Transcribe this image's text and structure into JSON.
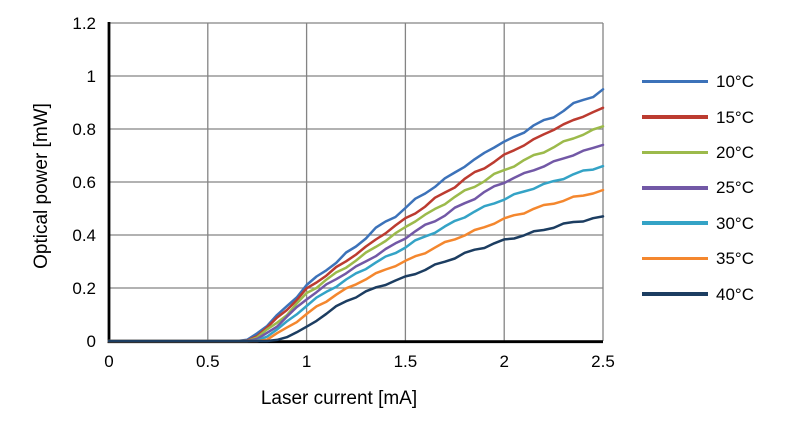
{
  "chart_data": {
    "type": "line",
    "title": "",
    "xlabel": "Laser current [mA]",
    "ylabel": "Optical power [mW]",
    "xlim": [
      0,
      2.5
    ],
    "ylim": [
      0,
      1.2
    ],
    "xticks": [
      0,
      0.5,
      1,
      1.5,
      2,
      2.5
    ],
    "xtick_labels": [
      "0",
      "0.5",
      "1",
      "1.5",
      "2",
      "2.5"
    ],
    "yticks": [
      0,
      0.2,
      0.4,
      0.6,
      0.8,
      1,
      1.2
    ],
    "ytick_labels": [
      "0",
      "0.2",
      "0.4",
      "0.6",
      "0.8",
      "1",
      "1.2"
    ],
    "grid": true,
    "grid_color": "#848484",
    "axis_color": "#000000",
    "legend_position": "right",
    "measurement_wiggle_mW": 0.004,
    "x_start": 0,
    "x_step": 0.05,
    "series": [
      {
        "name": "10°C",
        "color": "#3C72B9",
        "threshold_mA": 0.67,
        "values": [
          0,
          0,
          0,
          0,
          0,
          0,
          0,
          0,
          0,
          0,
          0,
          0,
          0,
          0,
          0.005,
          0.03,
          0.06,
          0.095,
          0.13,
          0.168,
          0.21,
          0.24,
          0.27,
          0.296,
          0.33,
          0.358,
          0.39,
          0.424,
          0.45,
          0.472,
          0.5,
          0.534,
          0.56,
          0.582,
          0.61,
          0.638,
          0.66,
          0.682,
          0.71,
          0.734,
          0.75,
          0.768,
          0.79,
          0.814,
          0.83,
          0.846,
          0.87,
          0.894,
          0.91,
          0.924,
          0.95
        ]
      },
      {
        "name": "15°C",
        "color": "#BC3B30",
        "threshold_mA": 0.69,
        "values": [
          0,
          0,
          0,
          0,
          0,
          0,
          0,
          0,
          0,
          0,
          0,
          0,
          0,
          0,
          0.002,
          0.022,
          0.05,
          0.085,
          0.12,
          0.155,
          0.195,
          0.222,
          0.25,
          0.276,
          0.3,
          0.33,
          0.355,
          0.38,
          0.41,
          0.437,
          0.46,
          0.483,
          0.51,
          0.537,
          0.56,
          0.583,
          0.61,
          0.635,
          0.655,
          0.676,
          0.7,
          0.722,
          0.74,
          0.758,
          0.78,
          0.8,
          0.815,
          0.832,
          0.85,
          0.863,
          0.88
        ]
      },
      {
        "name": "20°C",
        "color": "#9CBA4B",
        "threshold_mA": 0.71,
        "values": [
          0,
          0,
          0,
          0,
          0,
          0,
          0,
          0,
          0,
          0,
          0,
          0,
          0,
          0,
          0,
          0.015,
          0.04,
          0.07,
          0.1,
          0.138,
          0.18,
          0.204,
          0.23,
          0.256,
          0.28,
          0.304,
          0.33,
          0.357,
          0.38,
          0.403,
          0.43,
          0.455,
          0.475,
          0.496,
          0.52,
          0.544,
          0.565,
          0.584,
          0.605,
          0.627,
          0.645,
          0.662,
          0.68,
          0.7,
          0.715,
          0.73,
          0.75,
          0.767,
          0.78,
          0.794,
          0.81
        ]
      },
      {
        "name": "25°C",
        "color": "#7258A6",
        "threshold_mA": 0.73,
        "values": [
          0,
          0,
          0,
          0,
          0,
          0,
          0,
          0,
          0,
          0,
          0,
          0,
          0,
          0,
          0,
          0.008,
          0.03,
          0.058,
          0.09,
          0.125,
          0.16,
          0.185,
          0.21,
          0.235,
          0.258,
          0.278,
          0.3,
          0.324,
          0.345,
          0.366,
          0.39,
          0.414,
          0.435,
          0.454,
          0.475,
          0.499,
          0.52,
          0.539,
          0.56,
          0.582,
          0.6,
          0.615,
          0.63,
          0.647,
          0.66,
          0.674,
          0.69,
          0.704,
          0.715,
          0.727,
          0.74
        ]
      },
      {
        "name": "30°C",
        "color": "#34A3C6",
        "threshold_mA": 0.75,
        "values": [
          0,
          0,
          0,
          0,
          0,
          0,
          0,
          0,
          0,
          0,
          0,
          0,
          0,
          0,
          0,
          0.002,
          0.02,
          0.044,
          0.07,
          0.102,
          0.135,
          0.16,
          0.185,
          0.208,
          0.23,
          0.253,
          0.275,
          0.296,
          0.315,
          0.334,
          0.355,
          0.376,
          0.395,
          0.412,
          0.43,
          0.451,
          0.47,
          0.488,
          0.505,
          0.522,
          0.535,
          0.55,
          0.565,
          0.578,
          0.59,
          0.602,
          0.615,
          0.628,
          0.64,
          0.65,
          0.66
        ]
      },
      {
        "name": "35°C",
        "color": "#F4872E",
        "threshold_mA": 0.78,
        "values": [
          0,
          0,
          0,
          0,
          0,
          0,
          0,
          0,
          0,
          0,
          0,
          0,
          0,
          0,
          0,
          0,
          0.005,
          0.026,
          0.05,
          0.075,
          0.1,
          0.128,
          0.152,
          0.175,
          0.195,
          0.216,
          0.235,
          0.252,
          0.27,
          0.286,
          0.3,
          0.318,
          0.335,
          0.352,
          0.37,
          0.386,
          0.4,
          0.415,
          0.43,
          0.446,
          0.46,
          0.473,
          0.485,
          0.498,
          0.51,
          0.521,
          0.53,
          0.541,
          0.55,
          0.56,
          0.57
        ]
      },
      {
        "name": "40°C",
        "color": "#1C3D61",
        "threshold_mA": 0.84,
        "values": [
          0,
          0,
          0,
          0,
          0,
          0,
          0,
          0,
          0,
          0,
          0,
          0,
          0,
          0,
          0,
          0,
          0,
          0.004,
          0.018,
          0.033,
          0.05,
          0.078,
          0.105,
          0.128,
          0.15,
          0.168,
          0.185,
          0.2,
          0.215,
          0.228,
          0.24,
          0.255,
          0.27,
          0.285,
          0.3,
          0.315,
          0.33,
          0.343,
          0.355,
          0.368,
          0.38,
          0.39,
          0.4,
          0.41,
          0.42,
          0.43,
          0.44,
          0.448,
          0.455,
          0.462,
          0.47
        ]
      }
    ]
  }
}
